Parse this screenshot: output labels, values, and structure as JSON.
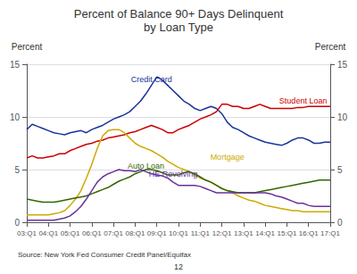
{
  "chart_data": {
    "type": "line",
    "title": "Percent of Balance 90+ Days Delinquent",
    "subtitle": "by Loan Type",
    "ylabel": "Percent",
    "y2label": "Percent",
    "source": "Source: New York Fed Consumer Credit Panel/Equifax",
    "page_number": "12",
    "categories": [
      "03:Q1",
      null,
      null,
      null,
      "04:Q1",
      null,
      null,
      null,
      "05:Q1",
      null,
      null,
      null,
      "06:Q1",
      null,
      null,
      null,
      "07:Q1",
      null,
      null,
      null,
      "08:Q1",
      null,
      null,
      null,
      "09:Q1",
      null,
      null,
      null,
      "10:Q1",
      null,
      null,
      null,
      "11:Q1",
      null,
      null,
      null,
      "12:Q1",
      null,
      null,
      null,
      "13:Q1",
      null,
      null,
      null,
      "14:Q1",
      null,
      null,
      null,
      "15:Q1",
      null,
      null,
      null,
      "16:Q1",
      null,
      null,
      null,
      "17:Q1"
    ],
    "series": [
      {
        "name": "Credit Card",
        "color": "#1a3399",
        "values": [
          8.8,
          9.3,
          9.1,
          8.9,
          8.7,
          8.5,
          8.4,
          8.3,
          8.5,
          8.6,
          8.7,
          8.5,
          8.8,
          9.0,
          9.2,
          9.5,
          9.8,
          10.0,
          10.2,
          10.5,
          11.0,
          11.5,
          12.2,
          13.0,
          13.8,
          13.5,
          13.0,
          12.5,
          12.0,
          11.5,
          11.2,
          10.8,
          10.6,
          10.8,
          11.0,
          10.8,
          10.3,
          9.5,
          9.0,
          8.8,
          8.5,
          8.2,
          8.0,
          7.8,
          7.6,
          7.5,
          7.4,
          7.3,
          7.5,
          7.8,
          8.0,
          8.0,
          7.8,
          7.5,
          7.5,
          7.6,
          7.6
        ]
      },
      {
        "name": "Student Loan",
        "color": "#cc0000",
        "values": [
          6.1,
          6.3,
          6.1,
          6.1,
          6.2,
          6.3,
          6.5,
          6.5,
          6.8,
          7.0,
          7.2,
          7.4,
          7.5,
          7.7,
          7.8,
          8.0,
          8.1,
          8.2,
          8.3,
          8.5,
          8.6,
          8.8,
          9.0,
          9.2,
          9.0,
          8.8,
          8.5,
          8.5,
          8.8,
          9.0,
          9.2,
          9.5,
          9.8,
          10.0,
          10.2,
          10.5,
          11.2,
          11.2,
          11.0,
          11.0,
          10.8,
          10.8,
          11.0,
          11.2,
          11.0,
          10.8,
          10.8,
          10.8,
          10.8,
          10.8,
          10.9,
          10.9,
          11.0,
          11.0,
          11.0,
          11.0,
          11.0
        ]
      },
      {
        "name": "Mortgage",
        "color": "#ccaa00",
        "values": [
          0.7,
          0.7,
          0.7,
          0.7,
          0.7,
          0.8,
          0.9,
          1.1,
          1.6,
          2.2,
          3.0,
          4.2,
          5.5,
          7.0,
          8.2,
          8.7,
          8.8,
          8.8,
          8.5,
          8.0,
          7.5,
          7.2,
          7.0,
          6.8,
          6.5,
          6.2,
          5.8,
          5.5,
          5.2,
          5.0,
          4.8,
          4.5,
          4.2,
          4.0,
          3.8,
          3.5,
          3.2,
          3.0,
          2.8,
          2.5,
          2.3,
          2.1,
          2.0,
          1.8,
          1.6,
          1.5,
          1.4,
          1.3,
          1.2,
          1.1,
          1.1,
          1.0,
          1.0,
          1.0,
          1.0,
          1.0,
          1.0
        ]
      },
      {
        "name": "Auto Loan",
        "color": "#336600",
        "values": [
          2.2,
          2.1,
          2.0,
          1.9,
          1.9,
          1.9,
          2.0,
          2.1,
          2.2,
          2.3,
          2.4,
          2.5,
          2.7,
          2.9,
          3.1,
          3.3,
          3.6,
          3.9,
          4.1,
          4.3,
          4.6,
          4.8,
          5.0,
          5.0,
          4.9,
          4.7,
          4.5,
          4.5,
          4.5,
          4.7,
          4.8,
          4.6,
          4.3,
          4.0,
          3.8,
          3.5,
          3.2,
          3.0,
          2.9,
          2.8,
          2.8,
          2.8,
          2.8,
          2.9,
          3.0,
          3.1,
          3.2,
          3.3,
          3.4,
          3.5,
          3.6,
          3.7,
          3.8,
          3.9,
          4.0,
          4.0,
          4.0
        ]
      },
      {
        "name": "HE Revolving",
        "color": "#663399",
        "values": [
          0.2,
          0.2,
          0.2,
          0.2,
          0.2,
          0.2,
          0.3,
          0.4,
          0.6,
          1.0,
          1.5,
          2.2,
          3.0,
          3.8,
          4.3,
          4.6,
          4.8,
          5.0,
          4.9,
          4.9,
          4.8,
          5.0,
          4.8,
          4.6,
          4.5,
          4.4,
          4.2,
          3.8,
          3.5,
          3.5,
          3.5,
          3.5,
          3.4,
          3.2,
          3.0,
          2.8,
          2.8,
          2.8,
          2.8,
          2.8,
          2.8,
          2.8,
          2.8,
          2.8,
          2.8,
          2.7,
          2.5,
          2.4,
          2.2,
          2.0,
          1.8,
          1.8,
          1.6,
          1.5,
          1.5,
          1.5,
          1.5
        ]
      }
    ],
    "annotations": [
      {
        "text": "Credit Card",
        "x": 23,
        "y": 13.6
      },
      {
        "text": "Student Loan",
        "x": 51,
        "y": 11.5
      },
      {
        "text": "Mortgage",
        "x": 37,
        "y": 6.2
      },
      {
        "text": "Auto Loan",
        "x": 22,
        "y": 5.3
      },
      {
        "text": "HE Revolving",
        "x": 27,
        "y": 4.6
      }
    ],
    "ylim": [
      0,
      15
    ],
    "yticks": [
      0,
      5,
      10,
      15
    ],
    "y2lim": [
      0,
      15
    ],
    "y2ticks": [
      0,
      5,
      10,
      15
    ],
    "grid": true
  }
}
